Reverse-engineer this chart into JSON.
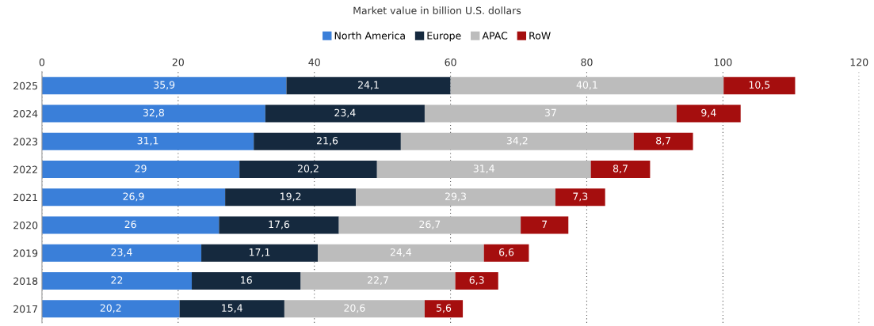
{
  "chart_data": {
    "type": "bar",
    "orientation": "horizontal",
    "stacked": true,
    "xlabel": "Market value in billion U.S. dollars",
    "categories": [
      "2025",
      "2024",
      "2023",
      "2022",
      "2021",
      "2020",
      "2019",
      "2018",
      "2017"
    ],
    "series": [
      {
        "name": "North America",
        "color": "#3a7fd9",
        "values": [
          35.9,
          32.8,
          31.1,
          29,
          26.9,
          26,
          23.4,
          22,
          20.2
        ],
        "value_labels": [
          "35,9",
          "32,8",
          "31,1",
          "29",
          "26,9",
          "26",
          "23,4",
          "22",
          "20,2"
        ]
      },
      {
        "name": "Europe",
        "color": "#15293e",
        "values": [
          24.1,
          23.4,
          21.6,
          20.2,
          19.2,
          17.6,
          17.1,
          16,
          15.4
        ],
        "value_labels": [
          "24,1",
          "23,4",
          "21,6",
          "20,2",
          "19,2",
          "17,6",
          "17,1",
          "16",
          "15,4"
        ]
      },
      {
        "name": "APAC",
        "color": "#bcbcbc",
        "values": [
          40.1,
          37,
          34.2,
          31.4,
          29.3,
          26.7,
          24.4,
          22.7,
          20.6
        ],
        "value_labels": [
          "40,1",
          "37",
          "34,2",
          "31,4",
          "29,3",
          "26,7",
          "24,4",
          "22,7",
          "20,6"
        ]
      },
      {
        "name": "RoW",
        "color": "#a50e0e",
        "values": [
          10.5,
          9.4,
          8.7,
          8.7,
          7.3,
          7,
          6.6,
          6.3,
          5.6
        ],
        "value_labels": [
          "10,5",
          "9,4",
          "8,7",
          "8,7",
          "7,3",
          "7",
          "6,6",
          "6,3",
          "5,6"
        ]
      }
    ],
    "xlim": [
      0,
      120
    ],
    "xticks": [
      0,
      20,
      40,
      60,
      80,
      100,
      120
    ],
    "grid": "x",
    "legend": "top"
  }
}
